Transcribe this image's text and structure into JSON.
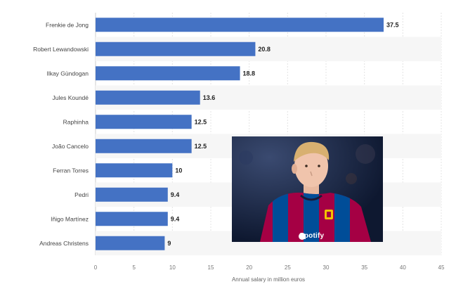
{
  "chart_data": {
    "type": "bar",
    "orientation": "horizontal",
    "categories": [
      "Frenkie de Jong",
      "Robert Lewandowski",
      "Ilkay Gündogan",
      "Jules Koundé",
      "Raphinha",
      "João Cancelo",
      "Ferran Torres",
      "Pedri",
      "Iñigo Martínez",
      "Andreas Christens"
    ],
    "values": [
      37.5,
      20.8,
      18.8,
      13.6,
      12.5,
      12.5,
      10,
      9.4,
      9.4,
      9
    ],
    "value_labels": [
      "37.5",
      "20.8",
      "18.8",
      "13.6",
      "12.5",
      "12.5",
      "10",
      "9.4",
      "9.4",
      "9"
    ],
    "xlabel": "Annual salary in million euros",
    "xlim": [
      0,
      45
    ],
    "xticks": [
      0,
      5,
      10,
      15,
      20,
      25,
      30,
      35,
      40,
      45
    ],
    "grid": true,
    "bar_color": "#4472c4"
  },
  "photo": {
    "sponsor_text": "Spotify",
    "colors": {
      "background": "#14203e",
      "shirt_red": "#a50044",
      "shirt_blue": "#004d98"
    }
  }
}
